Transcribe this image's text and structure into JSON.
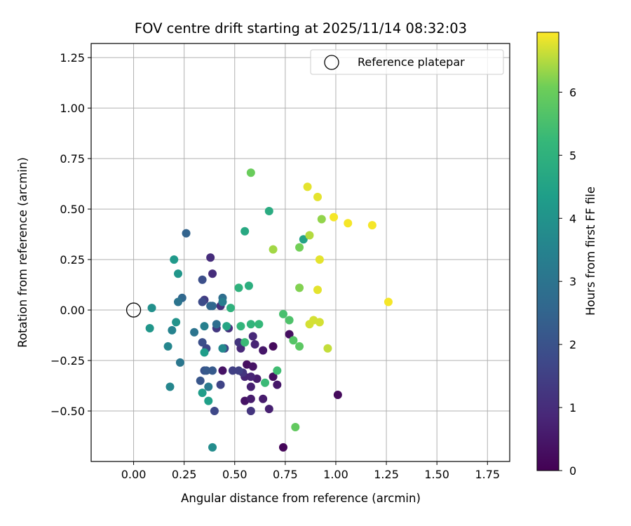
{
  "chart_data": {
    "type": "scatter",
    "title": "FOV centre drift starting at 2025/11/14 08:32:03",
    "xlabel": "Angular distance from reference (arcmin)",
    "ylabel": "Rotation from reference (arcmin)",
    "colorbar_label": "Hours from first FF file",
    "xlim": [
      -0.21,
      1.86
    ],
    "ylim": [
      -0.75,
      1.32
    ],
    "xticks": [
      0.0,
      0.25,
      0.5,
      0.75,
      1.0,
      1.25,
      1.5,
      1.75
    ],
    "xtick_labels": [
      "0.00",
      "0.25",
      "0.50",
      "0.75",
      "1.00",
      "1.25",
      "1.50",
      "1.75"
    ],
    "yticks": [
      -0.5,
      -0.25,
      0.0,
      0.25,
      0.5,
      0.75,
      1.0,
      1.25
    ],
    "ytick_labels": [
      "−0.50",
      "−0.25",
      "0.00",
      "0.25",
      "0.50",
      "0.75",
      "1.00",
      "1.25"
    ],
    "colorbar_range": [
      0,
      6.95
    ],
    "colorbar_ticks": [
      0,
      1,
      2,
      3,
      4,
      5,
      6
    ],
    "colorbar_tick_labels": [
      "0",
      "1",
      "2",
      "3",
      "4",
      "5",
      "6"
    ],
    "colormap": "viridis",
    "grid": true,
    "legend": {
      "position": "top-right",
      "label": "Reference platepar"
    },
    "reference_point": {
      "x": 0.0,
      "y": 0.0
    },
    "points": [
      {
        "x": 0.74,
        "y": -0.68,
        "h": 0.1
      },
      {
        "x": 1.01,
        "y": -0.42,
        "h": 0.2
      },
      {
        "x": 0.69,
        "y": -0.18,
        "h": 0.2
      },
      {
        "x": 0.77,
        "y": -0.12,
        "h": 0.3
      },
      {
        "x": 0.69,
        "y": -0.33,
        "h": 0.3
      },
      {
        "x": 0.56,
        "y": -0.27,
        "h": 0.3
      },
      {
        "x": 0.59,
        "y": -0.28,
        "h": 0.4
      },
      {
        "x": 0.44,
        "y": -0.3,
        "h": 0.4
      },
      {
        "x": 0.55,
        "y": -0.45,
        "h": 0.4
      },
      {
        "x": 0.71,
        "y": -0.37,
        "h": 0.5
      },
      {
        "x": 0.64,
        "y": -0.2,
        "h": 0.5
      },
      {
        "x": 0.61,
        "y": -0.34,
        "h": 0.6
      },
      {
        "x": 0.58,
        "y": -0.44,
        "h": 0.6
      },
      {
        "x": 0.64,
        "y": -0.44,
        "h": 0.6
      },
      {
        "x": 0.67,
        "y": -0.49,
        "h": 0.7
      },
      {
        "x": 0.58,
        "y": -0.38,
        "h": 0.7
      },
      {
        "x": 0.55,
        "y": -0.33,
        "h": 0.8
      },
      {
        "x": 0.58,
        "y": -0.33,
        "h": 0.8
      },
      {
        "x": 0.6,
        "y": -0.17,
        "h": 0.8
      },
      {
        "x": 0.59,
        "y": -0.13,
        "h": 0.9
      },
      {
        "x": 0.53,
        "y": -0.19,
        "h": 0.9
      },
      {
        "x": 0.38,
        "y": 0.26,
        "h": 1.0
      },
      {
        "x": 0.39,
        "y": 0.18,
        "h": 1.0
      },
      {
        "x": 0.43,
        "y": 0.02,
        "h": 1.1
      },
      {
        "x": 0.47,
        "y": -0.09,
        "h": 1.1
      },
      {
        "x": 0.52,
        "y": -0.16,
        "h": 1.2
      },
      {
        "x": 0.54,
        "y": -0.31,
        "h": 1.2
      },
      {
        "x": 0.58,
        "y": -0.5,
        "h": 1.2
      },
      {
        "x": 0.41,
        "y": -0.09,
        "h": 1.3
      },
      {
        "x": 0.35,
        "y": 0.05,
        "h": 1.4
      },
      {
        "x": 0.49,
        "y": -0.3,
        "h": 1.5
      },
      {
        "x": 0.52,
        "y": -0.3,
        "h": 1.5
      },
      {
        "x": 0.45,
        "y": -0.19,
        "h": 1.6
      },
      {
        "x": 0.43,
        "y": -0.37,
        "h": 1.6
      },
      {
        "x": 0.4,
        "y": -0.5,
        "h": 1.7
      },
      {
        "x": 0.36,
        "y": -0.19,
        "h": 1.7
      },
      {
        "x": 0.34,
        "y": 0.04,
        "h": 1.8
      },
      {
        "x": 0.34,
        "y": 0.15,
        "h": 1.9
      },
      {
        "x": 0.34,
        "y": -0.16,
        "h": 1.9
      },
      {
        "x": 0.35,
        "y": -0.3,
        "h": 2.0
      },
      {
        "x": 0.33,
        "y": -0.35,
        "h": 2.1
      },
      {
        "x": 0.36,
        "y": -0.3,
        "h": 2.2
      },
      {
        "x": 0.39,
        "y": -0.3,
        "h": 2.2
      },
      {
        "x": 0.26,
        "y": 0.38,
        "h": 2.5
      },
      {
        "x": 0.24,
        "y": 0.06,
        "h": 2.6
      },
      {
        "x": 0.38,
        "y": 0.02,
        "h": 2.6
      },
      {
        "x": 0.39,
        "y": 0.02,
        "h": 2.6
      },
      {
        "x": 0.41,
        "y": -0.07,
        "h": 2.8
      },
      {
        "x": 0.44,
        "y": 0.06,
        "h": 2.8
      },
      {
        "x": 0.3,
        "y": -0.11,
        "h": 3.0
      },
      {
        "x": 0.22,
        "y": 0.04,
        "h": 3.0
      },
      {
        "x": 0.23,
        "y": -0.26,
        "h": 3.1
      },
      {
        "x": 0.37,
        "y": -0.38,
        "h": 3.2
      },
      {
        "x": 0.44,
        "y": 0.04,
        "h": 3.3
      },
      {
        "x": 0.35,
        "y": -0.08,
        "h": 3.4
      },
      {
        "x": 0.19,
        "y": -0.1,
        "h": 3.5
      },
      {
        "x": 0.17,
        "y": -0.18,
        "h": 3.6
      },
      {
        "x": 0.18,
        "y": -0.38,
        "h": 3.6
      },
      {
        "x": 0.44,
        "y": -0.19,
        "h": 3.7
      },
      {
        "x": 0.39,
        "y": -0.68,
        "h": 3.8
      },
      {
        "x": 0.09,
        "y": 0.01,
        "h": 3.9
      },
      {
        "x": 0.21,
        "y": -0.06,
        "h": 4.0
      },
      {
        "x": 0.08,
        "y": -0.09,
        "h": 4.1
      },
      {
        "x": 0.22,
        "y": 0.18,
        "h": 4.1
      },
      {
        "x": 0.2,
        "y": 0.25,
        "h": 4.2
      },
      {
        "x": 0.34,
        "y": -0.41,
        "h": 4.3
      },
      {
        "x": 0.35,
        "y": -0.21,
        "h": 4.3
      },
      {
        "x": 0.37,
        "y": -0.45,
        "h": 4.4
      },
      {
        "x": 0.84,
        "y": 0.35,
        "h": 4.5
      },
      {
        "x": 0.46,
        "y": -0.08,
        "h": 4.6
      },
      {
        "x": 0.55,
        "y": 0.39,
        "h": 4.7
      },
      {
        "x": 0.67,
        "y": 0.49,
        "h": 4.8
      },
      {
        "x": 0.57,
        "y": 0.12,
        "h": 4.9
      },
      {
        "x": 0.52,
        "y": 0.11,
        "h": 5.0
      },
      {
        "x": 0.48,
        "y": 0.01,
        "h": 5.0
      },
      {
        "x": 0.53,
        "y": -0.08,
        "h": 5.1
      },
      {
        "x": 0.58,
        "y": -0.07,
        "h": 5.1
      },
      {
        "x": 0.62,
        "y": -0.07,
        "h": 5.2
      },
      {
        "x": 0.55,
        "y": -0.16,
        "h": 5.3
      },
      {
        "x": 0.65,
        "y": -0.36,
        "h": 5.3
      },
      {
        "x": 0.71,
        "y": -0.3,
        "h": 5.4
      },
      {
        "x": 0.74,
        "y": -0.02,
        "h": 5.5
      },
      {
        "x": 0.77,
        "y": -0.05,
        "h": 5.6
      },
      {
        "x": 0.79,
        "y": -0.15,
        "h": 5.7
      },
      {
        "x": 0.82,
        "y": -0.18,
        "h": 5.8
      },
      {
        "x": 0.8,
        "y": -0.58,
        "h": 5.9
      },
      {
        "x": 0.58,
        "y": 0.68,
        "h": 6.0
      },
      {
        "x": 0.82,
        "y": 0.31,
        "h": 6.1
      },
      {
        "x": 0.82,
        "y": 0.11,
        "h": 6.2
      },
      {
        "x": 0.93,
        "y": 0.45,
        "h": 6.3
      },
      {
        "x": 0.69,
        "y": 0.3,
        "h": 6.4
      },
      {
        "x": 0.87,
        "y": 0.37,
        "h": 6.5
      },
      {
        "x": 0.96,
        "y": -0.19,
        "h": 6.6
      },
      {
        "x": 0.87,
        "y": -0.07,
        "h": 6.7
      },
      {
        "x": 0.89,
        "y": -0.05,
        "h": 6.7
      },
      {
        "x": 0.92,
        "y": -0.06,
        "h": 6.7
      },
      {
        "x": 0.91,
        "y": 0.1,
        "h": 6.8
      },
      {
        "x": 0.92,
        "y": 0.25,
        "h": 6.8
      },
      {
        "x": 0.86,
        "y": 0.61,
        "h": 6.8
      },
      {
        "x": 0.91,
        "y": 0.56,
        "h": 6.8
      },
      {
        "x": 0.99,
        "y": 0.46,
        "h": 6.9
      },
      {
        "x": 1.06,
        "y": 0.43,
        "h": 6.9
      },
      {
        "x": 1.18,
        "y": 0.42,
        "h": 6.9
      },
      {
        "x": 1.26,
        "y": 0.04,
        "h": 6.9
      }
    ]
  }
}
